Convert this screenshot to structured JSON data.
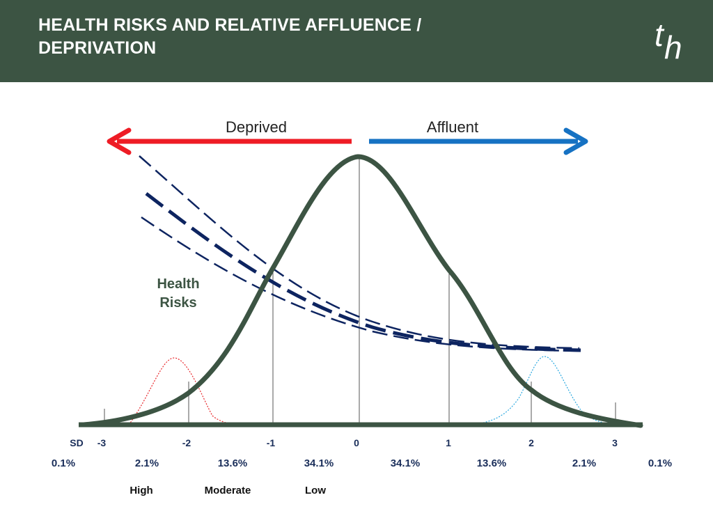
{
  "header": {
    "title_line1": "HEALTH RISKS AND RELATIVE AFFLUENCE /",
    "title_line2": "DEPRIVATION",
    "logo_letters": "th",
    "background_color": "#3c5443"
  },
  "diagram": {
    "deprived_label": "Deprived",
    "affluent_label": "Affluent",
    "health_risks_line1": "Health",
    "health_risks_line2": "Risks",
    "sd_label": "SD",
    "sd_ticks": [
      "-3",
      "-2",
      "-1",
      "0",
      "1",
      "2",
      "3"
    ],
    "percentages": [
      "0.1%",
      "2.1%",
      "13.6%",
      "34.1%",
      "34.1%",
      "13.6%",
      "2.1%",
      "0.1%"
    ],
    "risk_levels": [
      "High",
      "Moderate",
      "Low"
    ],
    "colors": {
      "curve": "#3c5443",
      "deprived_arrow": "#ee1c25",
      "affluent_arrow": "#1672c3",
      "risk_lines": "#0d2460",
      "tail_left": "#e8262a",
      "tail_right": "#29a8e0"
    }
  }
}
